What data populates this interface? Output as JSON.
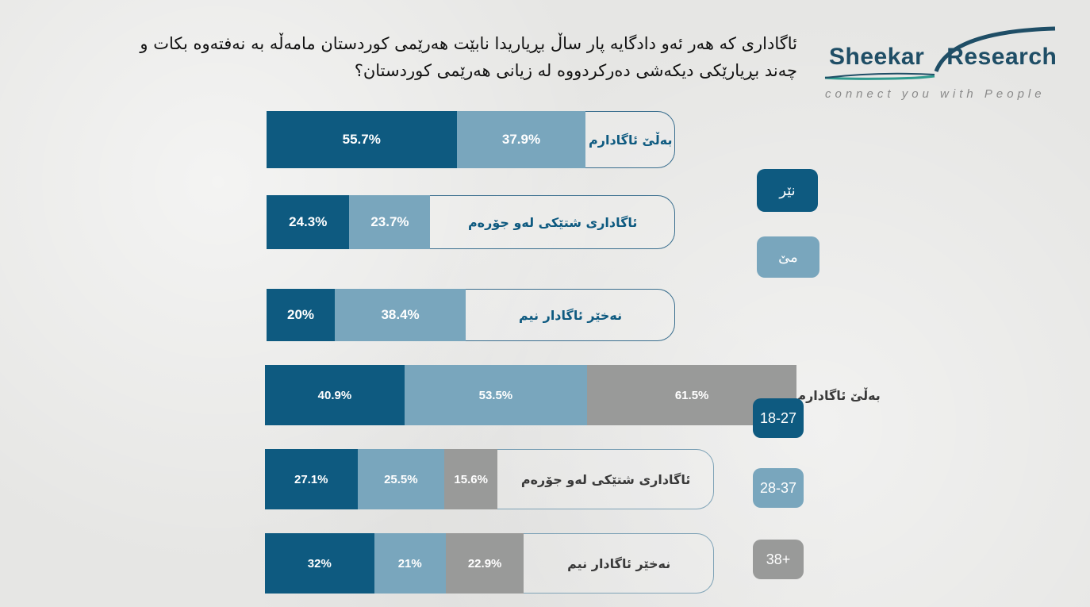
{
  "title": "ئاگاداری کە هەر ئەو دادگایە پار ساڵ بڕیاریدا نابێت هەرێمی کوردستان مامەڵە بە نەفتەوە بکات و چەند بڕیارێکی دیکەشی دەرکردووە لە زیانی هەرێمی کوردستان؟",
  "logo": {
    "word1": "Sheekar",
    "word2": "Research",
    "tagline": "connect you with People"
  },
  "colors": {
    "dark_blue": "#0e5a80",
    "light_blue": "#79a6bd",
    "gray": "#999a99",
    "label_blue": "#0e5a80",
    "label_gray": "#3a3a3a"
  },
  "legend_gender": [
    {
      "label": "نێر",
      "color": "#0e5a80"
    },
    {
      "label": "مێ",
      "color": "#79a6bd"
    }
  ],
  "legend_age": [
    {
      "label": "18-27",
      "color": "#0e5a80"
    },
    {
      "label": "28-37",
      "color": "#79a6bd"
    },
    {
      "label": "38+",
      "color": "#999a99"
    }
  ],
  "chart_data": [
    {
      "type": "bar",
      "orientation": "horizontal",
      "stacked": true,
      "categories": [
        "بەڵێ ئاگادارم",
        "ئاگاداری شتێکی لەو جۆرەم",
        "نەخێر ئاگادار نیم"
      ],
      "series": [
        {
          "name": "نێر",
          "values": [
            55.7,
            24.3,
            20
          ],
          "labels": [
            "55.7%",
            "24.3%",
            "20%"
          ]
        },
        {
          "name": "مێ",
          "values": [
            37.9,
            23.7,
            38.4
          ],
          "labels": [
            "37.9%",
            "23.7%",
            "38.4%"
          ]
        }
      ],
      "unit": "%"
    },
    {
      "type": "bar",
      "orientation": "horizontal",
      "stacked": true,
      "categories": [
        "بەڵێ ئاگادارم",
        "ئاگاداری شتێکی لەو جۆرەم",
        "نەخێر ئاگادار نیم"
      ],
      "series": [
        {
          "name": "18-27",
          "values": [
            40.9,
            27.1,
            32
          ],
          "labels": [
            "40.9%",
            "27.1%",
            "32%"
          ]
        },
        {
          "name": "28-37",
          "values": [
            53.5,
            25.5,
            21
          ],
          "labels": [
            "53.5%",
            "25.5%",
            "21%"
          ]
        },
        {
          "name": "38+",
          "values": [
            61.5,
            15.6,
            22.9
          ],
          "labels": [
            "61.5%",
            "15.6%",
            "22.9%"
          ]
        }
      ],
      "unit": "%"
    }
  ]
}
